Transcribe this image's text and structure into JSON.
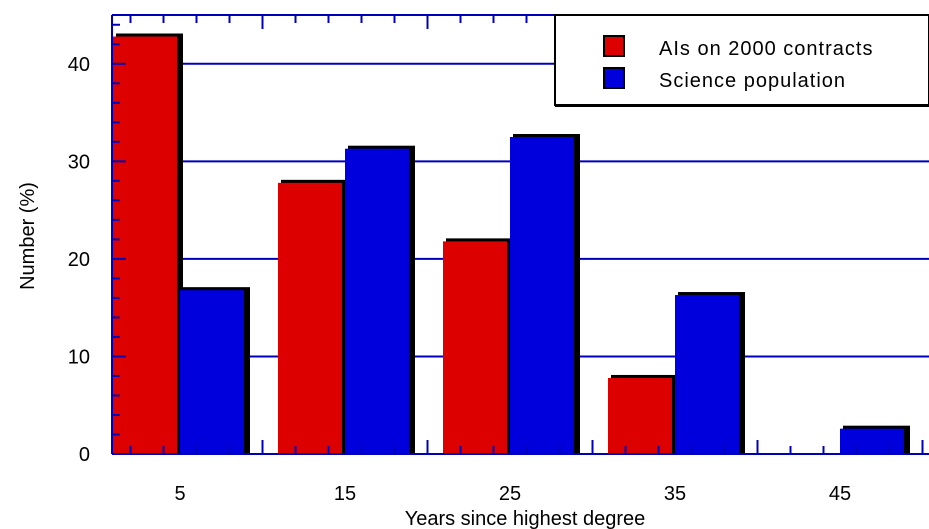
{
  "chart_data": {
    "type": "bar",
    "title": "",
    "xlabel": "Years since highest degree",
    "ylabel": "Number (%)",
    "categories": [
      "5",
      "15",
      "25",
      "35",
      "45"
    ],
    "x_tick_labels": [
      "5",
      "15",
      "25",
      "35",
      "45"
    ],
    "y_tick_labels": [
      "0",
      "10",
      "20",
      "30",
      "40"
    ],
    "ylim": [
      0,
      45
    ],
    "grid": true,
    "legend_position": "top-right",
    "series": [
      {
        "name": "AIs on 2000 contracts",
        "color": "#dd0000",
        "values": [
          43,
          28,
          22,
          8,
          0
        ]
      },
      {
        "name": "Science population",
        "color": "#0000dd",
        "values": [
          17,
          31.5,
          32.7,
          16.5,
          2.8
        ]
      }
    ]
  }
}
